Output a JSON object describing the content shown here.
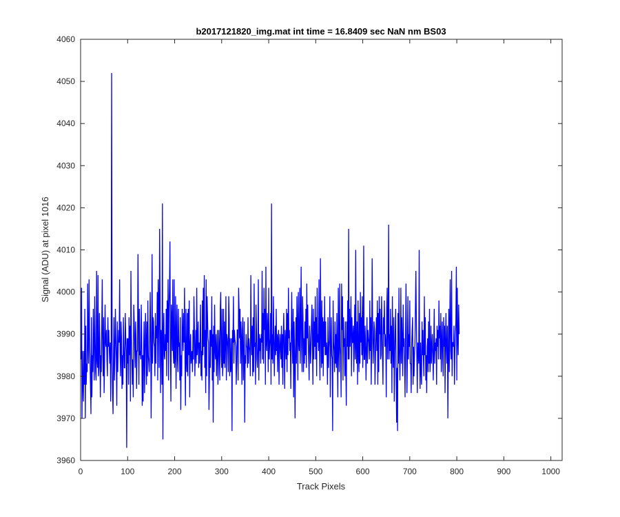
{
  "chart_data": {
    "type": "line",
    "title": "b2017121820_img.mat int time = 16.8409 sec  NaN nm BS03",
    "xlabel": "Track Pixels",
    "ylabel": "Signal (ADU) at pixel 1016",
    "xlim": [
      0,
      1024
    ],
    "ylim": [
      3960,
      4060
    ],
    "xticks": [
      0,
      100,
      200,
      300,
      400,
      500,
      600,
      700,
      800,
      900,
      1000
    ],
    "yticks": [
      3960,
      3970,
      3980,
      3990,
      4000,
      4010,
      4020,
      4030,
      4040,
      4050,
      4060
    ],
    "grid": false,
    "legend": "none",
    "series": [
      {
        "color": "#0000ff",
        "x_start": 1,
        "x_step": 1,
        "y": [
          3984,
          4001,
          3970,
          3986,
          3978,
          3974,
          3986,
          3978,
          3996,
          3970,
          3992,
          3978,
          3983,
          3981,
          4002,
          3987,
          3983,
          4003,
          3990,
          3984,
          3978,
          3971,
          3994,
          3975,
          3985,
          3981,
          3996,
          3987,
          3979,
          3999,
          3989,
          3981,
          3979,
          4005,
          3984,
          3982,
          4004,
          3980,
          3982,
          3995,
          3988,
          3975,
          3985,
          3981,
          3992,
          4003,
          3986,
          3980,
          3994,
          3976,
          3983,
          3997,
          3988,
          3987,
          3991,
          3984,
          3980,
          3994,
          3987,
          3991,
          3986,
          3983,
          3988,
          3974,
          3985,
          4052,
          3988,
          3976,
          3971,
          3985,
          3994,
          3979,
          3985,
          3996,
          3989,
          3984,
          3973,
          3993,
          3981,
          3987,
          3991,
          3988,
          4003,
          3985,
          3980,
          3993,
          3989,
          3977,
          3985,
          3978,
          3994,
          3987,
          3982,
          3982,
          3995,
          3989,
          3986,
          3963,
          3989,
          3983,
          3989,
          3978,
          3994,
          3985,
          3992,
          3974,
          4005,
          3990,
          3984,
          3978,
          3984,
          3975,
          3997,
          3993,
          3987,
          3982,
          3993,
          3989,
          3977,
          3986,
          3986,
          4009,
          3994,
          3978,
          3996,
          3985,
          3986,
          3984,
          3997,
          3989,
          3973,
          3985,
          3974,
          3986,
          3993,
          3976,
          3985,
          3995,
          3989,
          3978,
          3993,
          3980,
          3998,
          3985,
          3983,
          3981,
          3988,
          4000,
          3990,
          3970,
          3984,
          4009,
          3983,
          3994,
          3993,
          3988,
          3987,
          3980,
          3995,
          3983,
          3992,
          3989,
          4000,
          3979,
          4003,
          3997,
          3982,
          4015,
          3999,
          3976,
          3991,
          3989,
          3978,
          4021,
          3965,
          3989,
          3995,
          3985,
          3984,
          3990,
          3986,
          3996,
          3980,
          3998,
          3988,
          4003,
          3979,
          3996,
          4001,
          4012,
          3986,
          3974,
          3997,
          3994,
          3986,
          4003,
          3986,
          3983,
          4003,
          3982,
          3985,
          3999,
          3977,
          3990,
          3997,
          3984,
          3981,
          3996,
          3987,
          3988,
          3979,
          3994,
          3972,
          3985,
          3980,
          3996,
          3990,
          3986,
          3995,
          3988,
          4001,
          3984,
          3973,
          3996,
          3984,
          3981,
          3995,
          3980,
          3996,
          3985,
          3998,
          3975,
          3987,
          3990,
          3983,
          3985,
          3986,
          3981,
          3991,
          3984,
          3999,
          3992,
          3980,
          3986,
          3991,
          3983,
          4001,
          3985,
          3988,
          3993,
          3982,
          3988,
          3983,
          3988,
          3997,
          3980,
          3986,
          3979,
          3998,
          3985,
          4001,
          3987,
          4004,
          3982,
          3991,
          3976,
          4003,
          3980,
          3999,
          3994,
          3989,
          3988,
          3972,
          3980,
          3991,
          3982,
          3991,
          3987,
          3999,
          3979,
          3990,
          3969,
          3992,
          3981,
          3997,
          3986,
          3984,
          3990,
          3980,
          3986,
          3991,
          3978,
          3983,
          3991,
          3986,
          3979,
          3996,
          4000,
          3985,
          3982,
          3996,
          3980,
          3983,
          3996,
          3983,
          3993,
          3982,
          3988,
          3999,
          3979,
          3990,
          3989,
          3987,
          3981,
          3999,
          3994,
          3980,
          3989,
          3981,
          3983,
          3989,
          3967,
          3991,
          3988,
          3999,
          3983,
          3991,
          3989,
          3988,
          3987,
          3978,
          3983,
          3991,
          3991,
          3979,
          4001,
          3996,
          3989,
          3996,
          3983,
          3993,
          3989,
          3978,
          3991,
          3994,
          3979,
          3984,
          3993,
          3969,
          3985,
          3983,
          3990,
          3987,
          3987,
          3982,
          3994,
          3983,
          3989,
          3987,
          3986,
          3980,
          4004,
          3989,
          3985,
          3992,
          3980,
          3994,
          3981,
          4002,
          3987,
          3988,
          3978,
          3997,
          3991,
          3984,
          3982,
          3987,
          4003,
          3979,
          3990,
          3986,
          3989,
          3983,
          3990,
          3988,
          4005,
          3984,
          3995,
          3983,
          4001,
          3991,
          3996,
          3978,
          4006,
          3988,
          3986,
          3995,
          3991,
          3981,
          4001,
          3984,
          3987,
          3989,
          3995,
          3978,
          4021,
          3984,
          3990,
          3983,
          3999,
          3990,
          3980,
          3987,
          3992,
          3985,
          3996,
          3986,
          3990,
          3981,
          3989,
          3991,
          3978,
          3987,
          3990,
          3986,
          3984,
          3992,
          3982,
          3990,
          3978,
          3990,
          3995,
          3986,
          3977,
          3991,
          3988,
          3984,
          3996,
          3981,
          3995,
          3985,
          4001,
          3989,
          3991,
          3986,
          3988,
          3977,
          3991,
          4000,
          3988,
          3983,
          3996,
          3975,
          3993,
          3985,
          3970,
          3986,
          3994,
          3983,
          3999,
          3992,
          3979,
          4000,
          3988,
          3986,
          4001,
          3983,
          3993,
          4006,
          3987,
          3981,
          3999,
          3994,
          3981,
          3989,
          3983,
          3993,
          3985,
          3996,
          3982,
          4002,
          3989,
          3997,
          3989,
          3984,
          3979,
          3992,
          3989,
          3983,
          3986,
          3993,
          3997,
          3988,
          3978,
          3996,
          3984,
          3993,
          3987,
          3999,
          3984,
          3994,
          3980,
          4001,
          3988,
          3990,
          3986,
          4003,
          3987,
          3979,
          4008,
          3992,
          3982,
          3998,
          3983,
          3994,
          3980,
          3993,
          3987,
          3999,
          3985,
          3993,
          3985,
          3988,
          3986,
          3978,
          3994,
          3982,
          3987,
          3989,
          3999,
          3975,
          3987,
          3994,
          3985,
          3984,
          3967,
          3998,
          3988,
          3986,
          3981,
          3993,
          3983,
          3990,
          3982,
          3995,
          3984,
          3975,
          4001,
          3987,
          3981,
          4002,
          3987,
          3985,
          3975,
          4002,
          3991,
          3999,
          3979,
          3994,
          3987,
          3989,
          3980,
          3993,
          3982,
          3973,
          3993,
          3987,
          3998,
          3984,
          4015,
          3984,
          3996,
          3987,
          3991,
          3999,
          3980,
          3994,
          3988,
          3988,
          3992,
          3981,
          3990,
          3997,
          3984,
          4010,
          3987,
          3983,
          3993,
          3978,
          3998,
          3986,
          3981,
          3995,
          3983,
          4000,
          3988,
          3994,
          3985,
          3999,
          3982,
          3987,
          4011,
          3984,
          3984,
          3992,
          3987,
          3979,
          3987,
          3994,
          3983,
          3991,
          3989,
          3988,
          3984,
          3998,
          3986,
          3994,
          3978,
          3988,
          4008,
          3992,
          3983,
          3987,
          3993,
          3991,
          3978,
          3984,
          3990,
          3994,
          3986,
          3998,
          3978,
          3995,
          3981,
          3999,
          3990,
          3996,
          3984,
          3985,
          3999,
          3992,
          3985,
          3978,
          3994,
          3990,
          3998,
          3987,
          3990,
          3988,
          3975,
          3996,
          4001,
          3984,
          3990,
          4016,
          3984,
          3990,
          3986,
          3996,
          3983,
          3992,
          3976,
          3999,
          3987,
          3982,
          3994,
          3974,
          3985,
          3991,
          3996,
          3980,
          3969,
          3982,
          3967,
          3995,
          3983,
          4001,
          3986,
          3979,
          3987,
          4001,
          3983,
          3994,
          3988,
          3980,
          3997,
          3987,
          3989,
          3983,
          3975,
          3990,
          4002,
          3988,
          3976,
          3985,
          3999,
          3984,
          3990,
          3987,
          3998,
          3983,
          3983,
          3976,
          3987,
          3991,
          3994,
          3978,
          3987,
          3980,
          3985,
          3988,
          3996,
          4005,
          3993,
          3985,
          3976,
          3988,
          3987,
          3983,
          4010,
          3984,
          3977,
          3988,
          3981,
          3978,
          3993,
          3985,
          3991,
          3984,
          3980,
          3999,
          3985,
          3994,
          3979,
          3985,
          3976,
          3987,
          3989,
          3981,
          3993,
          3983,
          3996,
          3981,
          3984,
          3992,
          3983,
          3987,
          3990,
          3985,
          3979,
          3988,
          3996,
          3983,
          3988,
          3986,
          3989,
          3978,
          3992,
          3987,
          3991,
          3984,
          3998,
          3989,
          3992,
          3984,
          3995,
          3981,
          3988,
          3993,
          3985,
          3980,
          3994,
          3987,
          3992,
          3976,
          3988,
          3995,
          3986,
          3983,
          3992,
          3970,
          3985,
          3996,
          3981,
          3993,
          4003,
          3986,
          3984,
          4005,
          3980,
          3988,
          3988,
          3987,
          3992,
          3978,
          3986,
          3990,
          3993,
          4006,
          3979,
          4001,
          3989,
          3985,
          3997,
          3990
        ]
      }
    ]
  }
}
